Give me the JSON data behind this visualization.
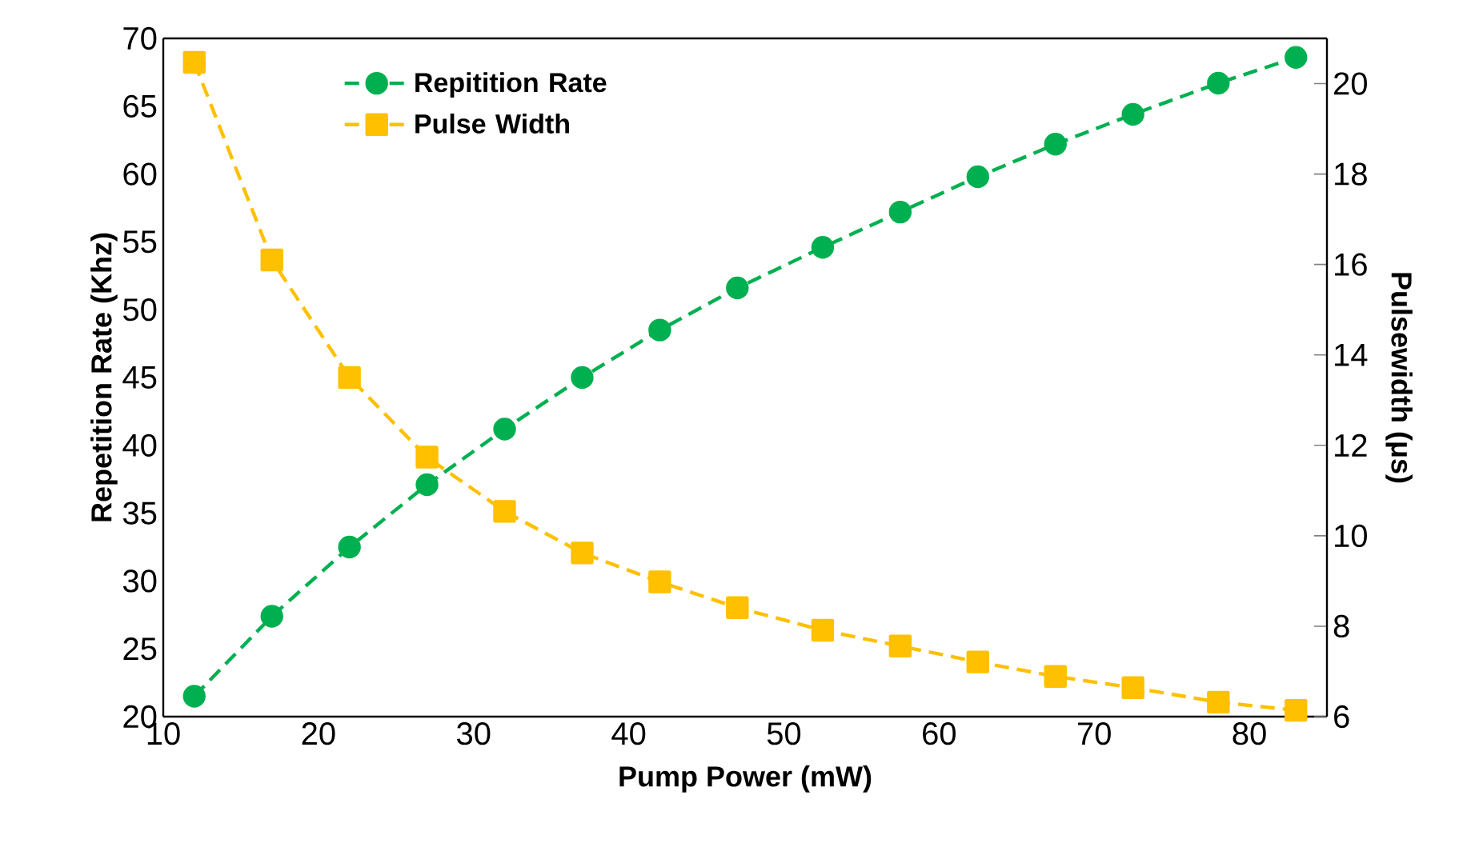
{
  "chart_data": {
    "type": "line",
    "xlabel": "Pump Power (mW)",
    "ylabel": "Repetition Rate (Khz)",
    "y2label": "Pulsewidth (μs)",
    "x": [
      12,
      17,
      22,
      27,
      32,
      37,
      42,
      47,
      52.5,
      57.5,
      62.5,
      67.5,
      72.5,
      78,
      83
    ],
    "series": [
      {
        "name": "Repitition Rate",
        "color": "#00b050",
        "marker": "circle",
        "values": [
          21.5,
          27.4,
          32.5,
          37.1,
          41.2,
          45.0,
          48.5,
          51.6,
          54.6,
          57.2,
          59.8,
          62.2,
          64.4,
          66.7,
          68.6
        ]
      },
      {
        "name": "Pulse Width",
        "color": "#ffc000",
        "marker": "square",
        "axis": "y2",
        "values": [
          20.47,
          16.1,
          13.5,
          11.74,
          10.54,
          9.62,
          8.98,
          8.41,
          7.91,
          7.56,
          7.21,
          6.89,
          6.64,
          6.32,
          6.14
        ]
      }
    ],
    "xlim": [
      10,
      85
    ],
    "xticks": [
      10,
      20,
      30,
      40,
      50,
      60,
      70,
      80
    ],
    "ylim": [
      20,
      70
    ],
    "yticks": [
      20,
      25,
      30,
      35,
      40,
      45,
      50,
      55,
      60,
      65,
      70
    ],
    "y2lim": [
      6,
      21
    ],
    "y2ticks": [
      6,
      8,
      10,
      12,
      14,
      16,
      18,
      20
    ],
    "line_style": "dashed",
    "grid": false,
    "legend": "top left"
  }
}
